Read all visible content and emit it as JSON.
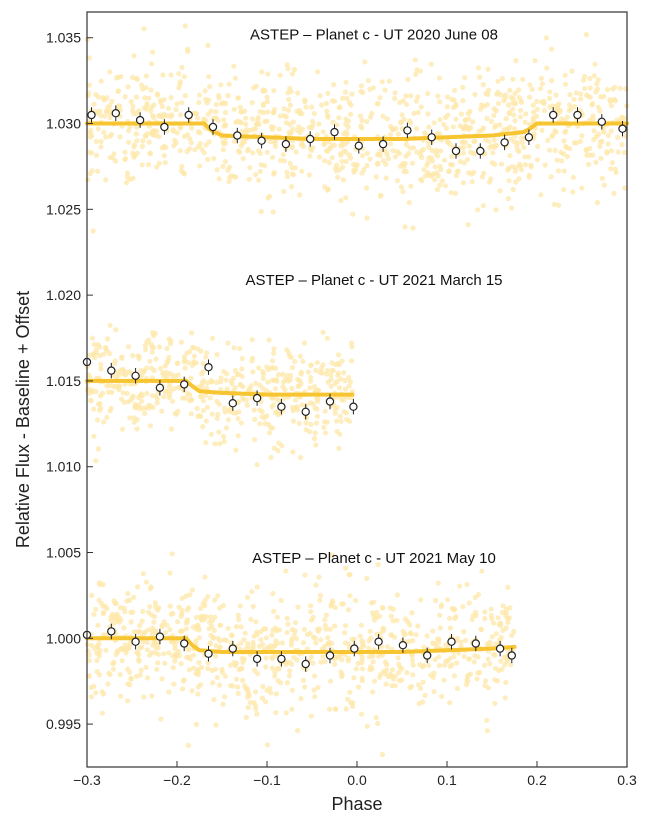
{
  "chart_data": {
    "type": "scatter",
    "xlabel": "Phase",
    "ylabel": "Relative Flux - Baseline + Offset",
    "xlim": [
      -0.3,
      0.3
    ],
    "ylim": [
      0.9925,
      1.0365
    ],
    "x_ticks": [
      -0.3,
      -0.2,
      -0.1,
      0.0,
      0.1,
      0.2,
      0.3
    ],
    "x_tick_labels": [
      "−0.3",
      "−0.2",
      "−0.1",
      "0.0",
      "0.1",
      "0.2",
      "0.3"
    ],
    "y_ticks": [
      0.995,
      1.0,
      1.005,
      1.01,
      1.015,
      1.02,
      1.025,
      1.03,
      1.035
    ],
    "y_tick_labels": [
      "0.995",
      "1.000",
      "1.005",
      "1.010",
      "1.015",
      "1.020",
      "1.025",
      "1.030",
      "1.035"
    ],
    "grid": false,
    "colors": {
      "raw_points": "#fde7a8",
      "model": "#f7c531",
      "binned_edge": "#222222",
      "binned_fill": "#ffffff"
    },
    "panels": [
      {
        "title": "ASTEP – Planet c - UT 2020 June 08",
        "raw_x_range": [
          -0.3,
          0.3
        ],
        "raw_scatter": 0.0018,
        "model": {
          "x": [
            -0.3,
            -0.17,
            -0.162,
            -0.15,
            -0.1,
            -0.05,
            0.0,
            0.05,
            0.1,
            0.15,
            0.185,
            0.192,
            0.2,
            0.3
          ],
          "y": [
            1.03,
            1.03,
            1.0296,
            1.0293,
            1.0292,
            1.0291,
            1.0291,
            1.0291,
            1.0292,
            1.0293,
            1.0295,
            1.0297,
            1.03,
            1.03
          ]
        },
        "binned": {
          "x": [
            -0.295,
            -0.268,
            -0.241,
            -0.214,
            -0.187,
            -0.16,
            -0.133,
            -0.106,
            -0.079,
            -0.052,
            -0.025,
            0.002,
            0.029,
            0.056,
            0.083,
            0.11,
            0.137,
            0.164,
            0.191,
            0.218,
            0.245,
            0.272,
            0.295
          ],
          "y": [
            1.0305,
            1.0306,
            1.0302,
            1.0298,
            1.0305,
            1.0298,
            1.0293,
            1.029,
            1.0288,
            1.0291,
            1.0295,
            1.0287,
            1.0288,
            1.0296,
            1.0292,
            1.0284,
            1.0284,
            1.0289,
            1.0292,
            1.0305,
            1.0305,
            1.0301,
            1.0297
          ]
        }
      },
      {
        "title": "ASTEP – Planet c - UT 2021 March 15",
        "raw_x_range": [
          -0.3,
          -0.005
        ],
        "raw_scatter": 0.0014,
        "model": {
          "x": [
            -0.3,
            -0.19,
            -0.183,
            -0.175,
            -0.15,
            -0.1,
            -0.05,
            -0.005
          ],
          "y": [
            1.015,
            1.015,
            1.0147,
            1.0144,
            1.0143,
            1.0142,
            1.0142,
            1.0142
          ]
        },
        "binned": {
          "x": [
            -0.3,
            -0.273,
            -0.246,
            -0.219,
            -0.192,
            -0.165,
            -0.138,
            -0.111,
            -0.084,
            -0.057,
            -0.03,
            -0.004
          ],
          "y": [
            1.0161,
            1.0156,
            1.0153,
            1.0146,
            1.0148,
            1.0158,
            1.0137,
            1.014,
            1.0135,
            1.0132,
            1.0138,
            1.0135
          ]
        }
      },
      {
        "title": "ASTEP – Planet c - UT 2021 May 10",
        "raw_x_range": [
          -0.3,
          0.175
        ],
        "raw_scatter": 0.0018,
        "model": {
          "x": [
            -0.3,
            -0.19,
            -0.183,
            -0.175,
            -0.15,
            -0.1,
            -0.05,
            0.0,
            0.05,
            0.1,
            0.15,
            0.175
          ],
          "y": [
            1.0,
            1.0,
            0.9996,
            0.9993,
            0.9992,
            0.9992,
            0.9992,
            0.9992,
            0.9992,
            0.9993,
            0.9994,
            0.9995
          ]
        },
        "binned": {
          "x": [
            -0.3,
            -0.273,
            -0.246,
            -0.219,
            -0.192,
            -0.165,
            -0.138,
            -0.111,
            -0.084,
            -0.057,
            -0.03,
            -0.003,
            0.024,
            0.051,
            0.078,
            0.105,
            0.132,
            0.159,
            0.172
          ],
          "y": [
            1.0002,
            1.0004,
            0.9998,
            1.0001,
            0.9997,
            0.9991,
            0.9994,
            0.9988,
            0.9988,
            0.9985,
            0.999,
            0.9994,
            0.9998,
            0.9996,
            0.999,
            0.9998,
            0.9997,
            0.9994,
            0.999
          ]
        }
      }
    ]
  }
}
